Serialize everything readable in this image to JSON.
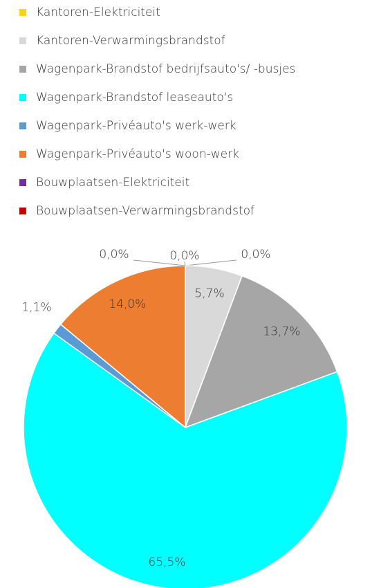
{
  "chart_data": {
    "type": "pie",
    "categories": [
      "Kantoren-Elektriciteit",
      "Kantoren-Verwarmingsbrandstof",
      "Wagenpark-Brandstof bedrijfsauto's/ -busjes",
      "Wagenpark-Brandstof leaseauto's",
      "Wagenpark-Privéauto's werk-werk",
      "Wagenpark-Privéauto's woon-werk",
      "Bouwplaatsen-Elektriciteit",
      "Bouwplaatsen-Verwarmingsbrandstof"
    ],
    "values": [
      0.0,
      5.7,
      13.7,
      65.5,
      1.1,
      14.0,
      0.0,
      0.0
    ],
    "value_labels": [
      "0,0%",
      "5,7%",
      "13,7%",
      "65,5%",
      "1,1%",
      "14,0%",
      "0,0%",
      "0,0%"
    ],
    "colors": [
      "#ffd700",
      "#d9d9d9",
      "#a6a6a6",
      "#00ffff",
      "#5b9bd5",
      "#ed7d31",
      "#7030a0",
      "#c00000"
    ],
    "legend": "top"
  }
}
